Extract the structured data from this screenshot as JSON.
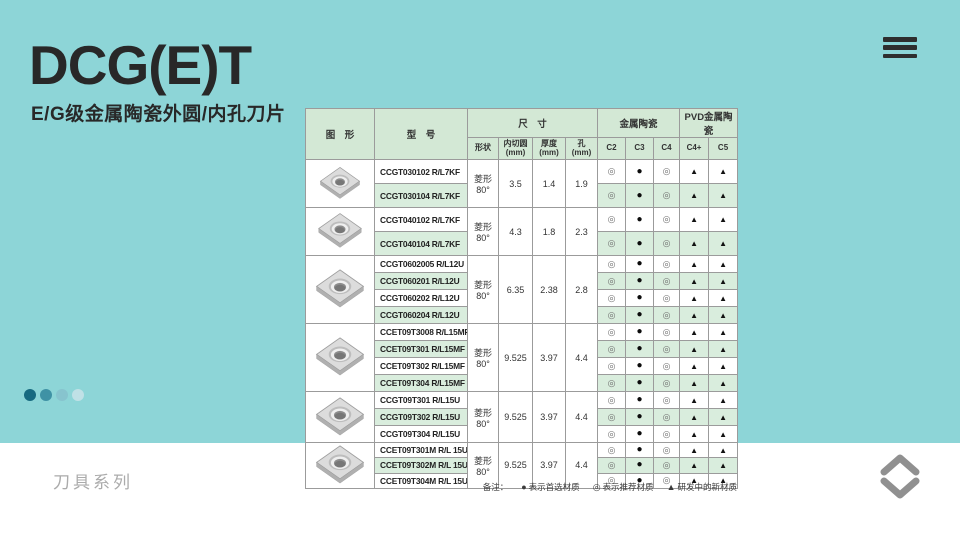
{
  "theme": {
    "colors": {
      "background": "#8dd5d7",
      "stripe": "#d9eddd",
      "header_bg": "#d3e8d5",
      "border": "#9b9b9b",
      "title_color": "#282828"
    }
  },
  "header": {
    "title": "DCG(E)T",
    "subtitle": "E/G级金属陶瓷外圆/内孔刀片",
    "menu_icon": "hamburger-icon"
  },
  "table": {
    "headers": {
      "shape_col": "图　形",
      "model_col": "型　号",
      "size_group": "尺　寸",
      "size_cols": [
        "形状",
        "内切圆\n(mm)",
        "厚度\n(mm)",
        "孔\n(mm)"
      ],
      "cermet_group": "金属陶瓷",
      "cermet_cols": [
        "C2",
        "C3",
        "C4"
      ],
      "pvd_group": "PVD金属陶瓷",
      "pvd_cols": [
        "C4+",
        "C5"
      ]
    },
    "row_symbols": [
      "◎",
      "●",
      "◎",
      "▲",
      "▲"
    ],
    "groups": [
      {
        "shape": "菱形80°",
        "inscribed_circle": "3.5",
        "thickness": "1.4",
        "hole": "1.9",
        "models": [
          "CCGT030102 R/L7KF",
          "CCGT030104 R/L7KF"
        ]
      },
      {
        "shape": "菱形80°",
        "inscribed_circle": "4.3",
        "thickness": "1.8",
        "hole": "2.3",
        "models": [
          "CCGT040102 R/L7KF",
          "CCGT040104 R/L7KF"
        ]
      },
      {
        "shape": "菱形80°",
        "inscribed_circle": "6.35",
        "thickness": "2.38",
        "hole": "2.8",
        "models": [
          "CCGT0602005 R/L12U",
          "CCGT060201 R/L12U",
          "CCGT060202 R/L12U",
          "CCGT060204 R/L12U"
        ]
      },
      {
        "shape": "菱形80°",
        "inscribed_circle": "9.525",
        "thickness": "3.97",
        "hole": "4.4",
        "models": [
          "CCET09T3008 R/L15MF",
          "CCET09T301 R/L15MF",
          "CCET09T302 R/L15MF",
          "CCET09T304 R/L15MF"
        ]
      },
      {
        "shape": "菱形80°",
        "inscribed_circle": "9.525",
        "thickness": "3.97",
        "hole": "4.4",
        "models": [
          "CCGT09T301 R/L15U",
          "CCGT09T302 R/L15U",
          "CCGT09T304 R/L15U"
        ]
      },
      {
        "shape": "菱形80°",
        "inscribed_circle": "9.525",
        "thickness": "3.97",
        "hole": "4.4",
        "models": [
          "CCET09T301M R/L 15UF",
          "CCET09T302M R/L 15UF",
          "CCET09T304M R/L 15UF"
        ]
      }
    ]
  },
  "legend": {
    "prefix": "备注：",
    "items": [
      {
        "symbol": "●",
        "label": "表示首选材质"
      },
      {
        "symbol": "◎",
        "label": "表示推荐材质"
      },
      {
        "symbol": "▲",
        "label": "研发中的新材质"
      }
    ]
  },
  "pagination": {
    "dots": [
      {
        "active": true,
        "color": "#176a80"
      },
      {
        "active": false,
        "color": "#3f92a5"
      },
      {
        "active": false,
        "color": "#87c4ce"
      },
      {
        "active": false,
        "color": "#c0e1e6"
      }
    ]
  },
  "footer": {
    "series_label": "刀具系列",
    "nav_up_icon": "chevron-up-icon",
    "nav_down_icon": "chevron-down-icon"
  }
}
